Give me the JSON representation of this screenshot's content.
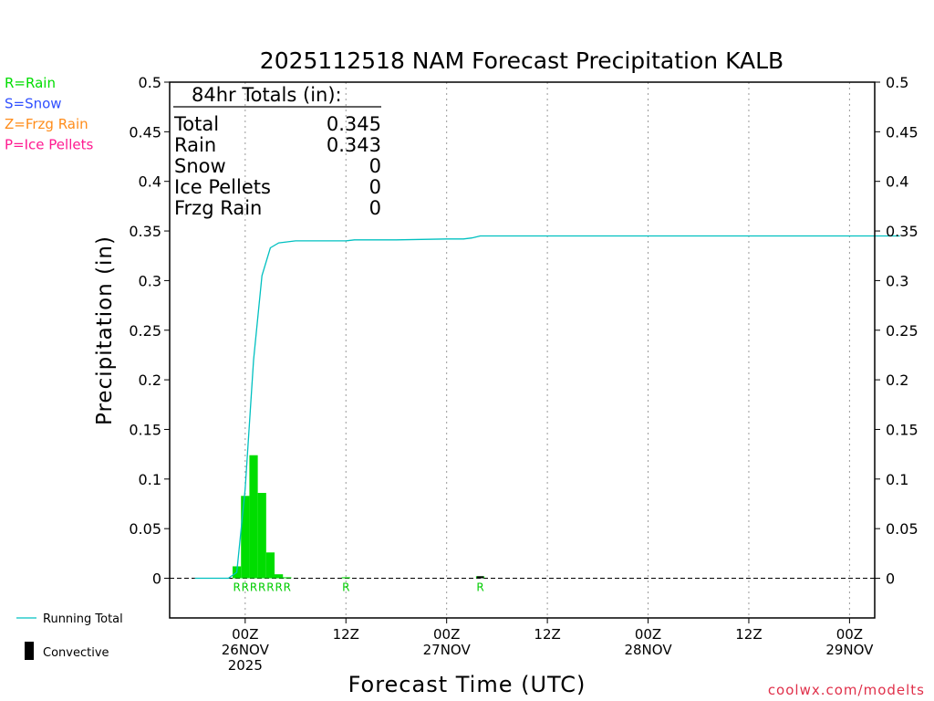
{
  "chart_data": {
    "type": "bar",
    "title": "2025112518 NAM Forecast Precipitation KALB",
    "ylabel": "Precipitation (in)",
    "xlabel": "Forecast Time (UTC)",
    "ylim": [
      -0.04,
      0.5
    ],
    "y_ticks": [
      "0",
      "0.05",
      "0.1",
      "0.15",
      "0.2",
      "0.25",
      "0.3",
      "0.35",
      "0.4",
      "0.45",
      "0.5"
    ],
    "y_tick_values": [
      0,
      0.05,
      0.1,
      0.15,
      0.2,
      0.25,
      0.3,
      0.35,
      0.4,
      0.45,
      0.5
    ],
    "x_unit": "hours after 2025-11-25 18Z",
    "xlim": [
      -3,
      81
    ],
    "x_ticks": [
      {
        "hour": 6,
        "lines": [
          "00Z",
          "26NOV",
          "2025"
        ]
      },
      {
        "hour": 18,
        "lines": [
          "12Z"
        ]
      },
      {
        "hour": 30,
        "lines": [
          "00Z",
          "27NOV"
        ]
      },
      {
        "hour": 42,
        "lines": [
          "12Z"
        ]
      },
      {
        "hour": 54,
        "lines": [
          "00Z",
          "28NOV"
        ]
      },
      {
        "hour": 66,
        "lines": [
          "12Z"
        ]
      },
      {
        "hour": 78,
        "lines": [
          "00Z",
          "29NOV"
        ]
      }
    ],
    "grid": "vertical dotted at x ticks",
    "series": [
      {
        "name": "Rain",
        "style": "bar",
        "color": "#00dd00",
        "x": [
          5,
          6,
          7,
          8,
          9,
          10,
          11,
          18,
          34
        ],
        "values": [
          0.012,
          0.083,
          0.124,
          0.086,
          0.026,
          0.004,
          0.001,
          0.001,
          0.002
        ]
      },
      {
        "name": "Running Total",
        "style": "line",
        "color": "#00c0c0",
        "x": [
          0,
          4,
          5,
          6,
          7,
          8,
          9,
          10,
          11,
          12,
          15,
          18,
          19,
          24,
          30,
          32,
          33,
          34,
          40,
          50,
          60,
          70,
          80,
          84
        ],
        "values": [
          0,
          0,
          0.006,
          0.09,
          0.22,
          0.305,
          0.333,
          0.338,
          0.339,
          0.34,
          0.34,
          0.34,
          0.341,
          0.341,
          0.342,
          0.342,
          0.343,
          0.345,
          0.345,
          0.345,
          0.345,
          0.345,
          0.345,
          0.345
        ]
      },
      {
        "name": "Convective",
        "style": "bar",
        "color": "#000000",
        "x": [
          34
        ],
        "values": [
          0.002
        ]
      }
    ],
    "type_markers": {
      "color": "#00cc00",
      "x": [
        5,
        6,
        7,
        8,
        9,
        10,
        11,
        18,
        34
      ],
      "labels": [
        "R",
        "R",
        "R",
        "R",
        "R",
        "R",
        "R",
        "R",
        "R"
      ]
    }
  },
  "totals_box": {
    "heading": "84hr Totals (in):",
    "rows": [
      {
        "label": "Total",
        "value": "0.345"
      },
      {
        "label": "Rain",
        "value": "0.343"
      },
      {
        "label": "Snow",
        "value": "0"
      },
      {
        "label": "Ice Pellets",
        "value": "0"
      },
      {
        "label": "Frzg Rain",
        "value": "0"
      }
    ]
  },
  "type_legend": [
    {
      "text": "R=Rain",
      "color": "#00dd00"
    },
    {
      "text": "S=Snow",
      "color": "#3050ff"
    },
    {
      "text": "Z=Frzg Rain",
      "color": "#ff8c1a"
    },
    {
      "text": "P=Ice Pellets",
      "color": "#ff1a90"
    }
  ],
  "bottom_legend": {
    "running_total": "Running Total",
    "convective": "Convective",
    "running_color": "#00c0c0"
  },
  "credit": "coolwx.com/modelts"
}
